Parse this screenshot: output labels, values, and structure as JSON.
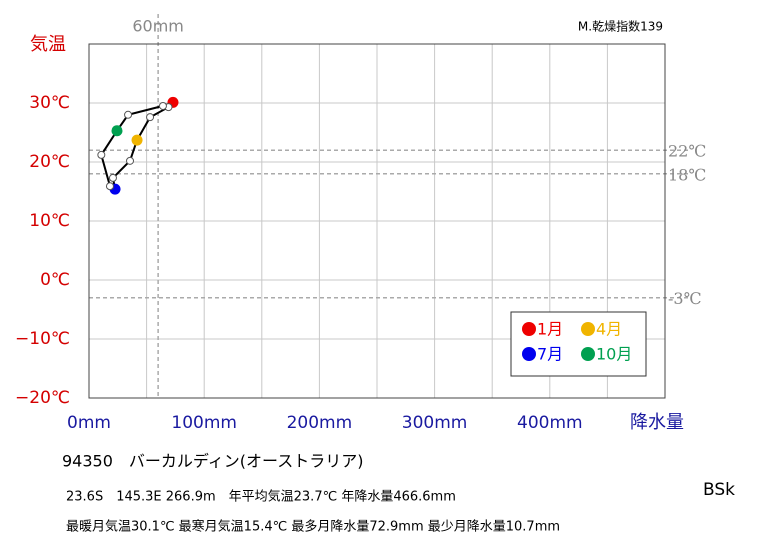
{
  "chart_data": {
    "type": "climograph",
    "y_label": "気温",
    "x_label": "降水量",
    "aridity": "M.乾燥指数139",
    "climate_class": "BSk",
    "station": "94350　バーカルディン(オーストラリア)",
    "info_line1": "23.6S　145.3E 266.9m　年平均気温23.7℃ 年降水量466.6mm",
    "info_line2": "最暖月気温30.1℃ 最寒月気温15.4℃ 最多月降水量72.9mm 最少月降水量10.7mm",
    "x": [
      72.9,
      69.0,
      53.0,
      41.7,
      35.6,
      20.8,
      22.6,
      18.2,
      10.7,
      24.3,
      33.9,
      64.2
    ],
    "values": [
      30.1,
      29.3,
      27.6,
      23.7,
      20.2,
      17.3,
      15.4,
      15.9,
      21.2,
      25.3,
      28.0,
      29.5
    ],
    "line_color": "#000000",
    "highlight": [
      {
        "name": "1月",
        "color": "#ee0000",
        "index": 0
      },
      {
        "name": "4月",
        "color": "#f0b400",
        "index": 3
      },
      {
        "name": "7月",
        "color": "#0000ee",
        "index": 6
      },
      {
        "name": "10月",
        "color": "#00a050",
        "index": 9
      }
    ],
    "xlim": [
      0,
      500
    ],
    "ylim": [
      -20,
      40
    ],
    "xticks": [
      {
        "value": 0,
        "label": "0mm"
      },
      {
        "value": 100,
        "label": "100mm"
      },
      {
        "value": 200,
        "label": "200mm"
      },
      {
        "value": 300,
        "label": "300mm"
      },
      {
        "value": 400,
        "label": "400mm"
      }
    ],
    "xgrid": [
      50,
      100,
      150,
      200,
      250,
      300,
      350,
      400,
      450
    ],
    "yticks": [
      {
        "value": -20,
        "label": "−20℃"
      },
      {
        "value": -10,
        "label": "−10℃"
      },
      {
        "value": 0,
        "label": "0℃"
      },
      {
        "value": 10,
        "label": "10℃"
      },
      {
        "value": 20,
        "label": "20℃"
      },
      {
        "value": 30,
        "label": "30℃"
      }
    ],
    "ref_x": [
      {
        "value": 60,
        "label": "60mm"
      }
    ],
    "ref_y": [
      {
        "value": 22,
        "label": "22℃"
      },
      {
        "value": 18,
        "label": "18℃"
      },
      {
        "value": -3,
        "label": "-3℃"
      }
    ],
    "grid": true
  }
}
